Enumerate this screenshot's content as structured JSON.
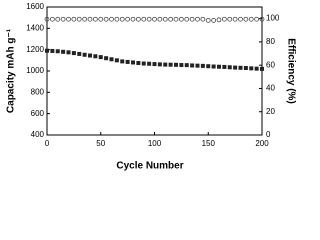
{
  "chart_data": {
    "type": "scatter",
    "xlabel": "Cycle Number",
    "ylabel": "Capacity mAh g⁻¹",
    "y2label": "Efficiency (%)",
    "x": [
      0,
      5,
      10,
      15,
      20,
      25,
      30,
      35,
      40,
      45,
      50,
      55,
      60,
      65,
      70,
      75,
      80,
      85,
      90,
      95,
      100,
      105,
      110,
      115,
      120,
      125,
      130,
      135,
      140,
      145,
      150,
      155,
      160,
      165,
      170,
      175,
      180,
      185,
      190,
      195,
      200
    ],
    "series": [
      {
        "name": "Capacity",
        "color": "#222222",
        "marker": "square",
        "values": [
          1190,
          1188,
          1185,
          1180,
          1175,
          1168,
          1160,
          1152,
          1145,
          1138,
          1130,
          1120,
          1110,
          1100,
          1090,
          1085,
          1080,
          1075,
          1070,
          1068,
          1065,
          1062,
          1060,
          1059,
          1058,
          1056,
          1055,
          1052,
          1050,
          1048,
          1045,
          1042,
          1040,
          1038,
          1035,
          1032,
          1030,
          1028,
          1025,
          1022,
          1020
        ]
      },
      {
        "name": "Efficiency",
        "color": "#444444",
        "marker": "circle",
        "axis": "y2",
        "values": [
          99.5,
          99.5,
          99.5,
          99.5,
          99.5,
          99.5,
          99.5,
          99.5,
          99.5,
          99.5,
          99.5,
          99.5,
          99.5,
          99.5,
          99.5,
          99.5,
          99.5,
          99.5,
          99.5,
          99.5,
          99.5,
          99.5,
          99.5,
          99.5,
          99.5,
          99.5,
          99.5,
          99.5,
          99.5,
          99.5,
          98.5,
          98.5,
          99,
          99.5,
          99.5,
          99.5,
          99.5,
          99.5,
          99.5,
          99.5,
          99.5
        ]
      }
    ],
    "xlim": [
      0,
      200
    ],
    "xticks": [
      0,
      50,
      100,
      150,
      200
    ],
    "ylim": [
      400,
      1600
    ],
    "yticks": [
      400,
      600,
      800,
      1000,
      1200,
      1400,
      1600
    ],
    "y2lim": [
      0,
      110
    ],
    "y2ticks": [
      0,
      20,
      40,
      60,
      80,
      100
    ]
  }
}
